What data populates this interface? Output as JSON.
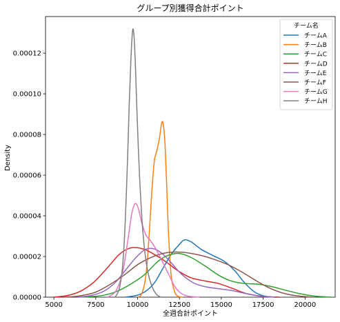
{
  "chart_data": {
    "type": "line",
    "title": "グループ別獲得合計ポイント",
    "xlabel": "全週合計ポイント",
    "ylabel": "Density",
    "xlim": [
      4500,
      21800
    ],
    "ylim": [
      0,
      0.000138
    ],
    "x_ticks": [
      5000,
      7500,
      10000,
      12500,
      15000,
      17500,
      20000
    ],
    "y_ticks": [
      0,
      2e-05,
      4e-05,
      6e-05,
      8e-05,
      0.0001,
      0.00012
    ],
    "x_tick_labels": [
      "5000",
      "7500",
      "10000",
      "12500",
      "15000",
      "17500",
      "20000"
    ],
    "y_tick_labels": [
      "0.00000",
      "0.00002",
      "0.00004",
      "0.00006",
      "0.00008",
      "0.00010",
      "0.00012"
    ],
    "grid": false,
    "legend": {
      "title": "チーム名",
      "position": "top-right"
    },
    "series": [
      {
        "name": "チームA",
        "color": "#1f77b4",
        "x": [
          9250,
          10000,
          10500,
          11000,
          11500,
          12000,
          12500,
          12800,
          13200,
          13800,
          14500,
          15200,
          15800,
          16400,
          17000,
          17600,
          18300
        ],
        "y": [
          0,
          1e-06,
          3e-06,
          7e-06,
          1.4e-05,
          2.1e-05,
          2.6e-05,
          2.82e-05,
          2.72e-05,
          2.35e-05,
          2.05e-05,
          1.75e-05,
          1.3e-05,
          7e-06,
          2.5e-06,
          5e-07,
          0
        ]
      },
      {
        "name": "チームB",
        "color": "#ff7f0e",
        "x": [
          10000,
          10200,
          10400,
          10550,
          10700,
          10850,
          11000,
          11150,
          11300,
          11450,
          11550,
          11650,
          11750,
          11850,
          12000,
          12200,
          12400,
          12700
        ],
        "y": [
          0,
          1e-06,
          6e-06,
          1.5e-05,
          3.2e-05,
          5.2e-05,
          6.7e-05,
          7.2e-05,
          7.8e-05,
          8.6e-05,
          8.4e-05,
          7.3e-05,
          5.2e-05,
          3.1e-05,
          1.1e-05,
          3e-06,
          5e-07,
          0
        ]
      },
      {
        "name": "チームC",
        "color": "#2ca02c",
        "x": [
          6300,
          7200,
          8000,
          8800,
          9600,
          10400,
          11200,
          11800,
          12500,
          13200,
          14000,
          14800,
          15500,
          16300,
          17200,
          18000,
          18800,
          19700,
          20600,
          21600
        ],
        "y": [
          0,
          3e-07,
          1e-06,
          3e-06,
          6.5e-06,
          1.1e-05,
          1.75e-05,
          2.05e-05,
          2.15e-05,
          1.95e-05,
          1.55e-05,
          1.1e-05,
          8.2e-06,
          6.8e-06,
          6.4e-06,
          5.2e-06,
          3.5e-06,
          1.7e-06,
          5e-07,
          0
        ]
      },
      {
        "name": "チームD",
        "color": "#d62728",
        "x": [
          5000,
          5800,
          6600,
          7400,
          8200,
          8900,
          9500,
          10000,
          10500,
          11000,
          11500,
          12000,
          12500,
          13200,
          14000,
          14800,
          15600,
          16500,
          17500,
          18500
        ],
        "y": [
          0,
          8e-07,
          3e-06,
          7.5e-06,
          1.45e-05,
          2.1e-05,
          2.4e-05,
          2.43e-05,
          2.32e-05,
          2.1e-05,
          1.85e-05,
          1.55e-05,
          1.25e-05,
          9.5e-06,
          8e-06,
          6.8e-06,
          4.5e-06,
          1.8e-06,
          4e-07,
          0
        ]
      },
      {
        "name": "チームE",
        "color": "#9467bd",
        "x": [
          6300,
          7200,
          8000,
          8700,
          9300,
          9900,
          10400,
          10800,
          11200,
          11600,
          12000,
          12600,
          13300,
          14000,
          14800,
          15600,
          16400,
          17200,
          18200
        ],
        "y": [
          0,
          8e-07,
          3e-06,
          7.5e-06,
          1.35e-05,
          1.95e-05,
          2.32e-05,
          2.4e-05,
          2.3e-05,
          2.05e-05,
          1.7e-05,
          1.15e-05,
          7.2e-06,
          5.2e-06,
          4.2e-06,
          3.3e-06,
          1.9e-06,
          6e-07,
          0
        ]
      },
      {
        "name": "チームF",
        "color": "#8c564b",
        "x": [
          5500,
          6500,
          7500,
          8500,
          9300,
          10000,
          10800,
          11500,
          12300,
          13000,
          13800,
          14600,
          15400,
          16200,
          17000,
          17800,
          18600,
          19400,
          20400
        ],
        "y": [
          0,
          6e-07,
          2.5e-06,
          7e-06,
          1.15e-05,
          1.6e-05,
          1.95e-05,
          2.15e-05,
          2.22e-05,
          2.18e-05,
          2.05e-05,
          1.85e-05,
          1.6e-05,
          1.25e-05,
          8.5e-06,
          4.8e-06,
          2.2e-06,
          8e-07,
          0
        ]
      },
      {
        "name": "チームG",
        "color": "#e377c2",
        "x": [
          8200,
          8700,
          9100,
          9400,
          9650,
          9850,
          10050,
          10250,
          10500,
          10750,
          11000,
          11300,
          11600,
          11900,
          12200,
          12500,
          12800,
          13200,
          13700
        ],
        "y": [
          0,
          3e-06,
          1.2e-05,
          2.7e-05,
          4.1e-05,
          4.6e-05,
          4.35e-05,
          3.65e-05,
          3.05e-05,
          2.8e-05,
          2.5e-05,
          2.05e-05,
          1.55e-05,
          1.05e-05,
          5.5e-06,
          2.5e-06,
          1e-06,
          3e-07,
          0
        ]
      },
      {
        "name": "チームH",
        "color": "#7f7f7f",
        "x": [
          8650,
          8900,
          9100,
          9250,
          9400,
          9500,
          9600,
          9700,
          9780,
          9860,
          9950,
          10050,
          10150,
          10280,
          10450,
          10650,
          10900,
          11150,
          11400
        ],
        "y": [
          0,
          4e-06,
          1.5e-05,
          3.5e-05,
          6.8e-05,
          9.5e-05,
          0.000117,
          0.000131,
          0.000129,
          0.000116,
          9.4e-05,
          7.2e-05,
          5.4e-05,
          3.6e-05,
          2.1e-05,
          1.1e-05,
          4.5e-06,
          1.2e-06,
          0
        ]
      }
    ]
  }
}
